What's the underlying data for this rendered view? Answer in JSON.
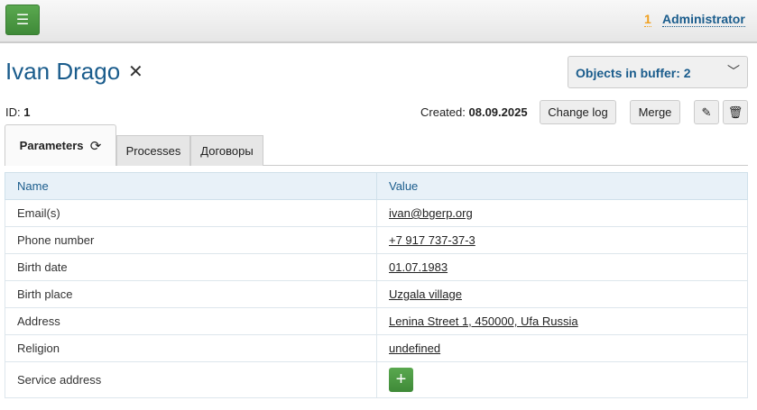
{
  "header": {
    "menu_icon": "hamburger-icon",
    "count": "1",
    "user": "Administrator"
  },
  "title": "Ivan Drago",
  "buffer": {
    "label": "Objects in buffer: 2"
  },
  "meta": {
    "id_label": "ID:",
    "id": "1",
    "created_label": "Created:",
    "created": "08.09.2025"
  },
  "buttons": {
    "change_log": "Change log",
    "merge": "Merge",
    "edit_icon": "pencil-icon",
    "delete_icon": "trash-icon"
  },
  "tabs": [
    {
      "label": "Parameters"
    },
    {
      "label": "Processes"
    },
    {
      "label": "Договоры"
    }
  ],
  "table": {
    "headers": [
      "Name",
      "Value"
    ],
    "rows": [
      {
        "name": "Email(s)",
        "value": "ivan@bgerp.org"
      },
      {
        "name": "Phone number",
        "value": "+7 917 737-37-3"
      },
      {
        "name": "Birth date",
        "value": "01.07.1983"
      },
      {
        "name": "Birth place",
        "value": "Uzgala village"
      },
      {
        "name": "Address",
        "value": "Lenina Street 1, 450000, Ufa Russia"
      },
      {
        "name": "Religion",
        "value": "undefined"
      },
      {
        "name": "Service address",
        "value": ""
      }
    ]
  }
}
